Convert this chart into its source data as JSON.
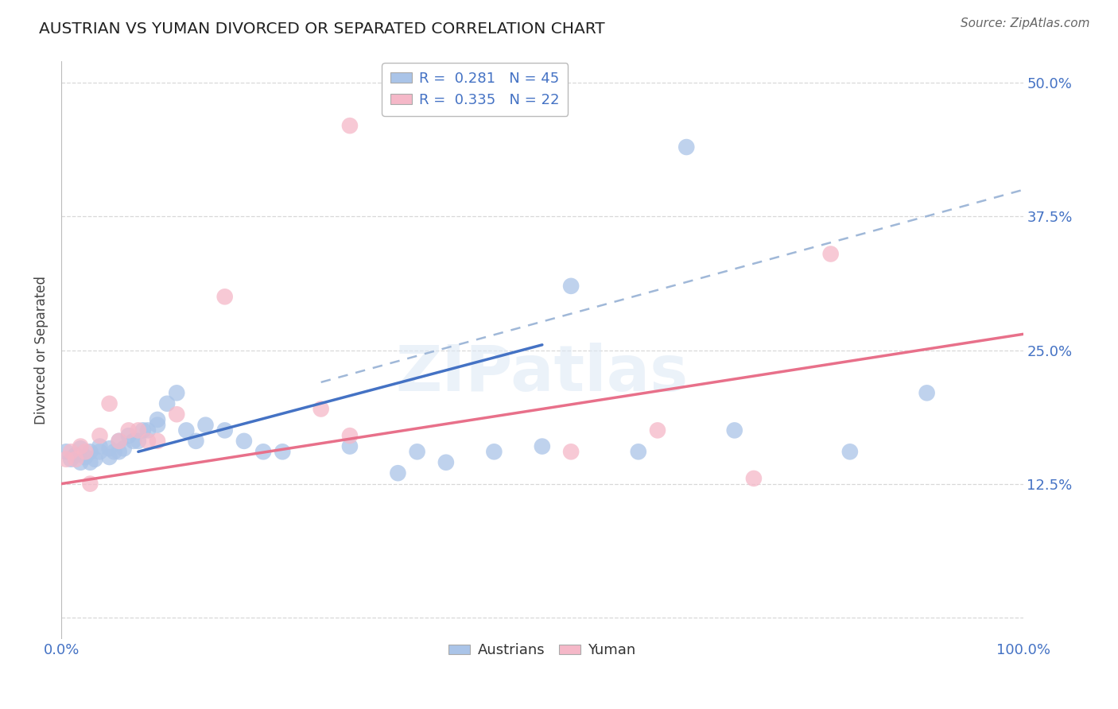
{
  "title": "AUSTRIAN VS YUMAN DIVORCED OR SEPARATED CORRELATION CHART",
  "source": "Source: ZipAtlas.com",
  "ylabel": "Divorced or Separated",
  "xlim": [
    0.0,
    1.0
  ],
  "ylim": [
    -0.02,
    0.52
  ],
  "xticks": [
    0.0,
    0.25,
    0.5,
    0.75,
    1.0
  ],
  "xtick_labels": [
    "0.0%",
    "",
    "",
    "",
    "100.0%"
  ],
  "ytick_labels": [
    "",
    "12.5%",
    "25.0%",
    "37.5%",
    "50.0%"
  ],
  "yticks": [
    0.0,
    0.125,
    0.25,
    0.375,
    0.5
  ],
  "grid_color": "#c8c8c8",
  "background_color": "#ffffff",
  "austrians_color": "#aac4e8",
  "yuman_color": "#f5b8c8",
  "trend_blue_color": "#4472c4",
  "trend_pink_color": "#e8708a",
  "trend_dashed_color": "#a0b8d8",
  "legend_text_color": "#4472c4",
  "axis_label_color": "#4472c4",
  "aus_x": [
    0.005,
    0.01,
    0.015,
    0.02,
    0.02,
    0.025,
    0.03,
    0.03,
    0.035,
    0.04,
    0.04,
    0.05,
    0.05,
    0.055,
    0.06,
    0.06,
    0.065,
    0.07,
    0.075,
    0.08,
    0.085,
    0.09,
    0.1,
    0.1,
    0.11,
    0.12,
    0.13,
    0.14,
    0.15,
    0.17,
    0.19,
    0.21,
    0.23,
    0.3,
    0.35,
    0.37,
    0.4,
    0.45,
    0.5,
    0.53,
    0.6,
    0.65,
    0.7,
    0.82,
    0.9
  ],
  "aus_y": [
    0.155,
    0.148,
    0.152,
    0.145,
    0.158,
    0.15,
    0.145,
    0.155,
    0.148,
    0.16,
    0.155,
    0.158,
    0.15,
    0.155,
    0.165,
    0.155,
    0.158,
    0.17,
    0.165,
    0.165,
    0.175,
    0.175,
    0.185,
    0.18,
    0.2,
    0.21,
    0.175,
    0.165,
    0.18,
    0.175,
    0.165,
    0.155,
    0.155,
    0.16,
    0.135,
    0.155,
    0.145,
    0.155,
    0.16,
    0.31,
    0.155,
    0.44,
    0.175,
    0.155,
    0.21
  ],
  "yum_x": [
    0.005,
    0.01,
    0.015,
    0.02,
    0.025,
    0.03,
    0.04,
    0.05,
    0.06,
    0.07,
    0.08,
    0.09,
    0.1,
    0.12,
    0.17,
    0.27,
    0.3,
    0.3,
    0.53,
    0.62,
    0.72,
    0.8
  ],
  "yum_y": [
    0.148,
    0.155,
    0.148,
    0.16,
    0.155,
    0.125,
    0.17,
    0.2,
    0.165,
    0.175,
    0.175,
    0.165,
    0.165,
    0.19,
    0.3,
    0.195,
    0.46,
    0.17,
    0.155,
    0.175,
    0.13,
    0.34
  ],
  "blue_line_x": [
    0.08,
    0.5
  ],
  "blue_line_y_start": 0.155,
  "blue_line_y_end": 0.255,
  "pink_line_x": [
    0.0,
    1.0
  ],
  "pink_line_y_start": 0.125,
  "pink_line_y_end": 0.265,
  "dashed_line_x": [
    0.27,
    1.0
  ],
  "dashed_line_y_start": 0.22,
  "dashed_line_y_end": 0.4
}
